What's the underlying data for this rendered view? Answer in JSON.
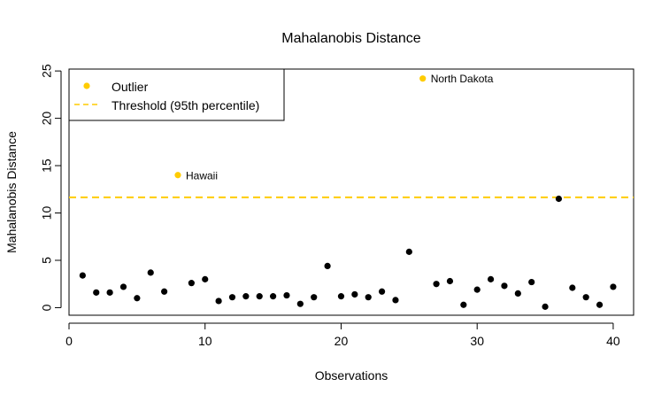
{
  "chart_data": {
    "type": "scatter",
    "title": "Mahalanobis Distance",
    "xlabel": "Observations",
    "ylabel": "Mahalanobis Distance",
    "xlim": [
      0,
      41.5
    ],
    "ylim": [
      -0.8,
      25.2
    ],
    "xticks": [
      0,
      10,
      20,
      30,
      40
    ],
    "yticks": [
      0,
      5,
      10,
      15,
      20,
      25
    ],
    "grid": false,
    "legend_position": "top-left",
    "colors": {
      "normal": "#000000",
      "outlier": "#FFCC00",
      "threshold": "#FFCC00"
    },
    "threshold": 11.65,
    "points": [
      {
        "x": 1,
        "y": 3.4
      },
      {
        "x": 2,
        "y": 1.6
      },
      {
        "x": 3,
        "y": 1.6
      },
      {
        "x": 4,
        "y": 2.2
      },
      {
        "x": 5,
        "y": 1.0
      },
      {
        "x": 6,
        "y": 3.7
      },
      {
        "x": 7,
        "y": 1.7
      },
      {
        "x": 8,
        "y": 14.0,
        "outlier": true,
        "label": "Hawaii"
      },
      {
        "x": 9,
        "y": 2.6
      },
      {
        "x": 10,
        "y": 3.0
      },
      {
        "x": 11,
        "y": 0.7
      },
      {
        "x": 12,
        "y": 1.1
      },
      {
        "x": 13,
        "y": 1.2
      },
      {
        "x": 14,
        "y": 1.2
      },
      {
        "x": 15,
        "y": 1.2
      },
      {
        "x": 16,
        "y": 1.3
      },
      {
        "x": 17,
        "y": 0.4
      },
      {
        "x": 18,
        "y": 1.1
      },
      {
        "x": 19,
        "y": 4.4
      },
      {
        "x": 20,
        "y": 1.2
      },
      {
        "x": 21,
        "y": 1.4
      },
      {
        "x": 22,
        "y": 1.1
      },
      {
        "x": 23,
        "y": 1.7
      },
      {
        "x": 24,
        "y": 0.8
      },
      {
        "x": 25,
        "y": 5.9
      },
      {
        "x": 26,
        "y": 24.2,
        "outlier": true,
        "label": "North Dakota"
      },
      {
        "x": 27,
        "y": 2.5
      },
      {
        "x": 28,
        "y": 2.8
      },
      {
        "x": 29,
        "y": 0.3
      },
      {
        "x": 30,
        "y": 1.9
      },
      {
        "x": 31,
        "y": 3.0
      },
      {
        "x": 32,
        "y": 2.3
      },
      {
        "x": 33,
        "y": 1.5
      },
      {
        "x": 34,
        "y": 2.7
      },
      {
        "x": 35,
        "y": 0.1
      },
      {
        "x": 36,
        "y": 11.5
      },
      {
        "x": 37,
        "y": 2.1
      },
      {
        "x": 38,
        "y": 1.1
      },
      {
        "x": 39,
        "y": 0.3
      },
      {
        "x": 40,
        "y": 2.2
      }
    ],
    "legend": [
      {
        "label": "Outlier",
        "kind": "point",
        "color": "#FFCC00"
      },
      {
        "label": "Threshold (95th percentile)",
        "kind": "dashed-line",
        "color": "#FFCC00"
      }
    ]
  }
}
